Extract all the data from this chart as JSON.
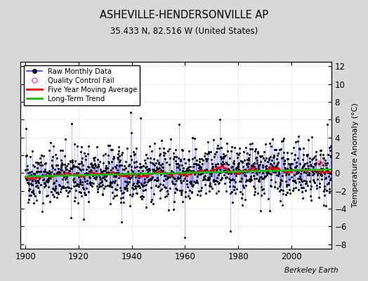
{
  "title": "ASHEVILLE-HENDERSONVILLE AP",
  "subtitle": "35.433 N, 82.516 W (United States)",
  "ylabel": "Temperature Anomaly (°C)",
  "credit": "Berkeley Earth",
  "xlim": [
    1898,
    2015
  ],
  "ylim": [
    -8.5,
    12.5
  ],
  "yticks": [
    -8,
    -6,
    -4,
    -2,
    0,
    2,
    4,
    6,
    8,
    10,
    12
  ],
  "xticks": [
    1900,
    1920,
    1940,
    1960,
    1980,
    2000
  ],
  "start_year": 1900,
  "end_year": 2014,
  "seed": 42,
  "bg_color": "#d8d8d8",
  "plot_bg_color": "#ffffff",
  "raw_line_color": "#4444ff",
  "raw_line_alpha": 0.5,
  "raw_dot_color": "#000000",
  "qc_color": "#ff69b4",
  "moving_avg_color": "#ff0000",
  "trend_color": "#00cc00",
  "legend_box_color": "#ffffff",
  "grid_color": "#cccccc",
  "grid_style": "dotted"
}
